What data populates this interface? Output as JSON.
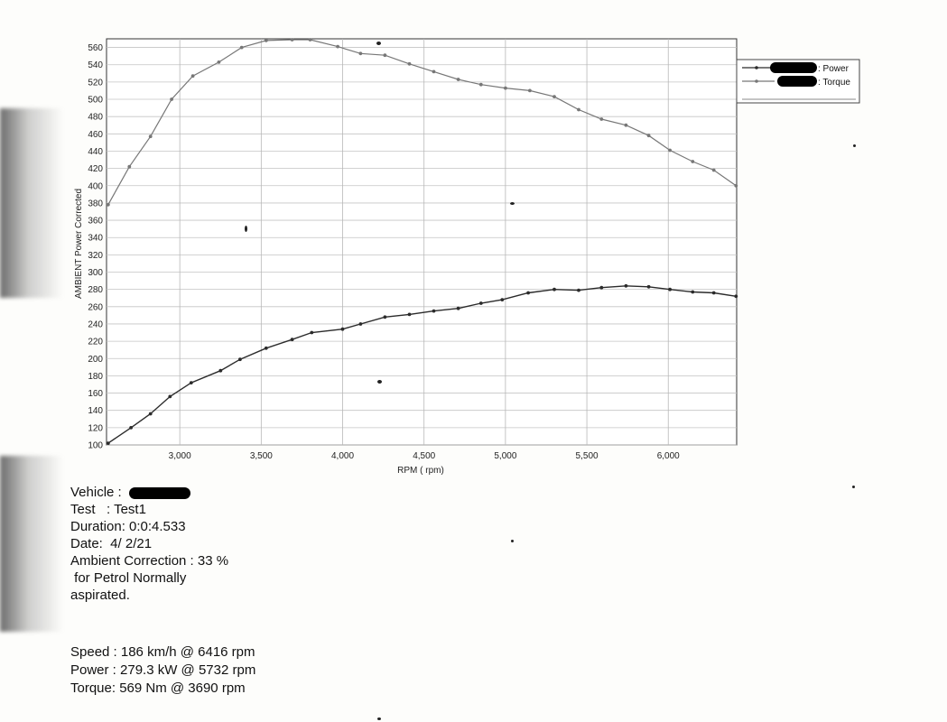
{
  "chart_data": {
    "type": "line",
    "ylabel": "AMBIENT Power Corrected",
    "xlabel": "RPM ( rpm)",
    "xlim": [
      2550,
      6420
    ],
    "ylim": [
      100,
      570
    ],
    "x_ticks": [
      3000,
      3500,
      4000,
      4500,
      5000,
      5500,
      6000
    ],
    "x_tick_labels": [
      "3,000",
      "3,500",
      "4,000",
      "4,500",
      "5,000",
      "5,500",
      "6,000"
    ],
    "y_ticks": [
      100,
      120,
      140,
      160,
      180,
      200,
      220,
      240,
      260,
      280,
      300,
      320,
      340,
      360,
      380,
      400,
      420,
      440,
      460,
      480,
      500,
      520,
      540,
      560
    ],
    "grid": true,
    "legend_position": "top-right-outside",
    "series": [
      {
        "name": ": Power",
        "color": "#2b2b2b",
        "x": [
          2560,
          2700,
          2820,
          2940,
          3070,
          3250,
          3370,
          3530,
          3690,
          3810,
          4000,
          4110,
          4260,
          4410,
          4560,
          4710,
          4850,
          4980,
          5140,
          5300,
          5450,
          5590,
          5740,
          5880,
          6010,
          6150,
          6280,
          6416
        ],
        "y": [
          102,
          120,
          136,
          156,
          172,
          186,
          199,
          212,
          222,
          230,
          234,
          240,
          248,
          251,
          255,
          258,
          264,
          268,
          276,
          280,
          279,
          282,
          284,
          283,
          280,
          277,
          276,
          272
        ]
      },
      {
        "name": ": Torque",
        "color": "#777777",
        "x": [
          2560,
          2690,
          2820,
          2950,
          3080,
          3240,
          3380,
          3530,
          3690,
          3800,
          3970,
          4110,
          4260,
          4410,
          4560,
          4710,
          4850,
          5000,
          5150,
          5300,
          5450,
          5590,
          5740,
          5880,
          6010,
          6150,
          6280,
          6416
        ],
        "y": [
          378,
          422,
          457,
          500,
          527,
          543,
          560,
          568,
          569,
          569,
          561,
          553,
          551,
          541,
          532,
          523,
          517,
          513,
          510,
          503,
          488,
          477,
          470,
          458,
          441,
          428,
          418,
          400
        ]
      }
    ]
  },
  "legend": {
    "power_label": ": Power",
    "torque_label": ": Torque"
  },
  "info": {
    "vehicle": "Vehicle : ",
    "test": "Test   : Test1",
    "duration": "Duration: 0:0:4.533",
    "date": "Date:  4/ 2/21",
    "ambient": "Ambient Correction : 33 %",
    "fuel1": " for Petrol Normally",
    "fuel2": "aspirated."
  },
  "stats": {
    "speed": "Speed : 186 km/h @ 6416 rpm",
    "power": "Power : 279.3 kW @ 5732 rpm",
    "torque": "Torque: 569 Nm @ 3690 rpm"
  }
}
